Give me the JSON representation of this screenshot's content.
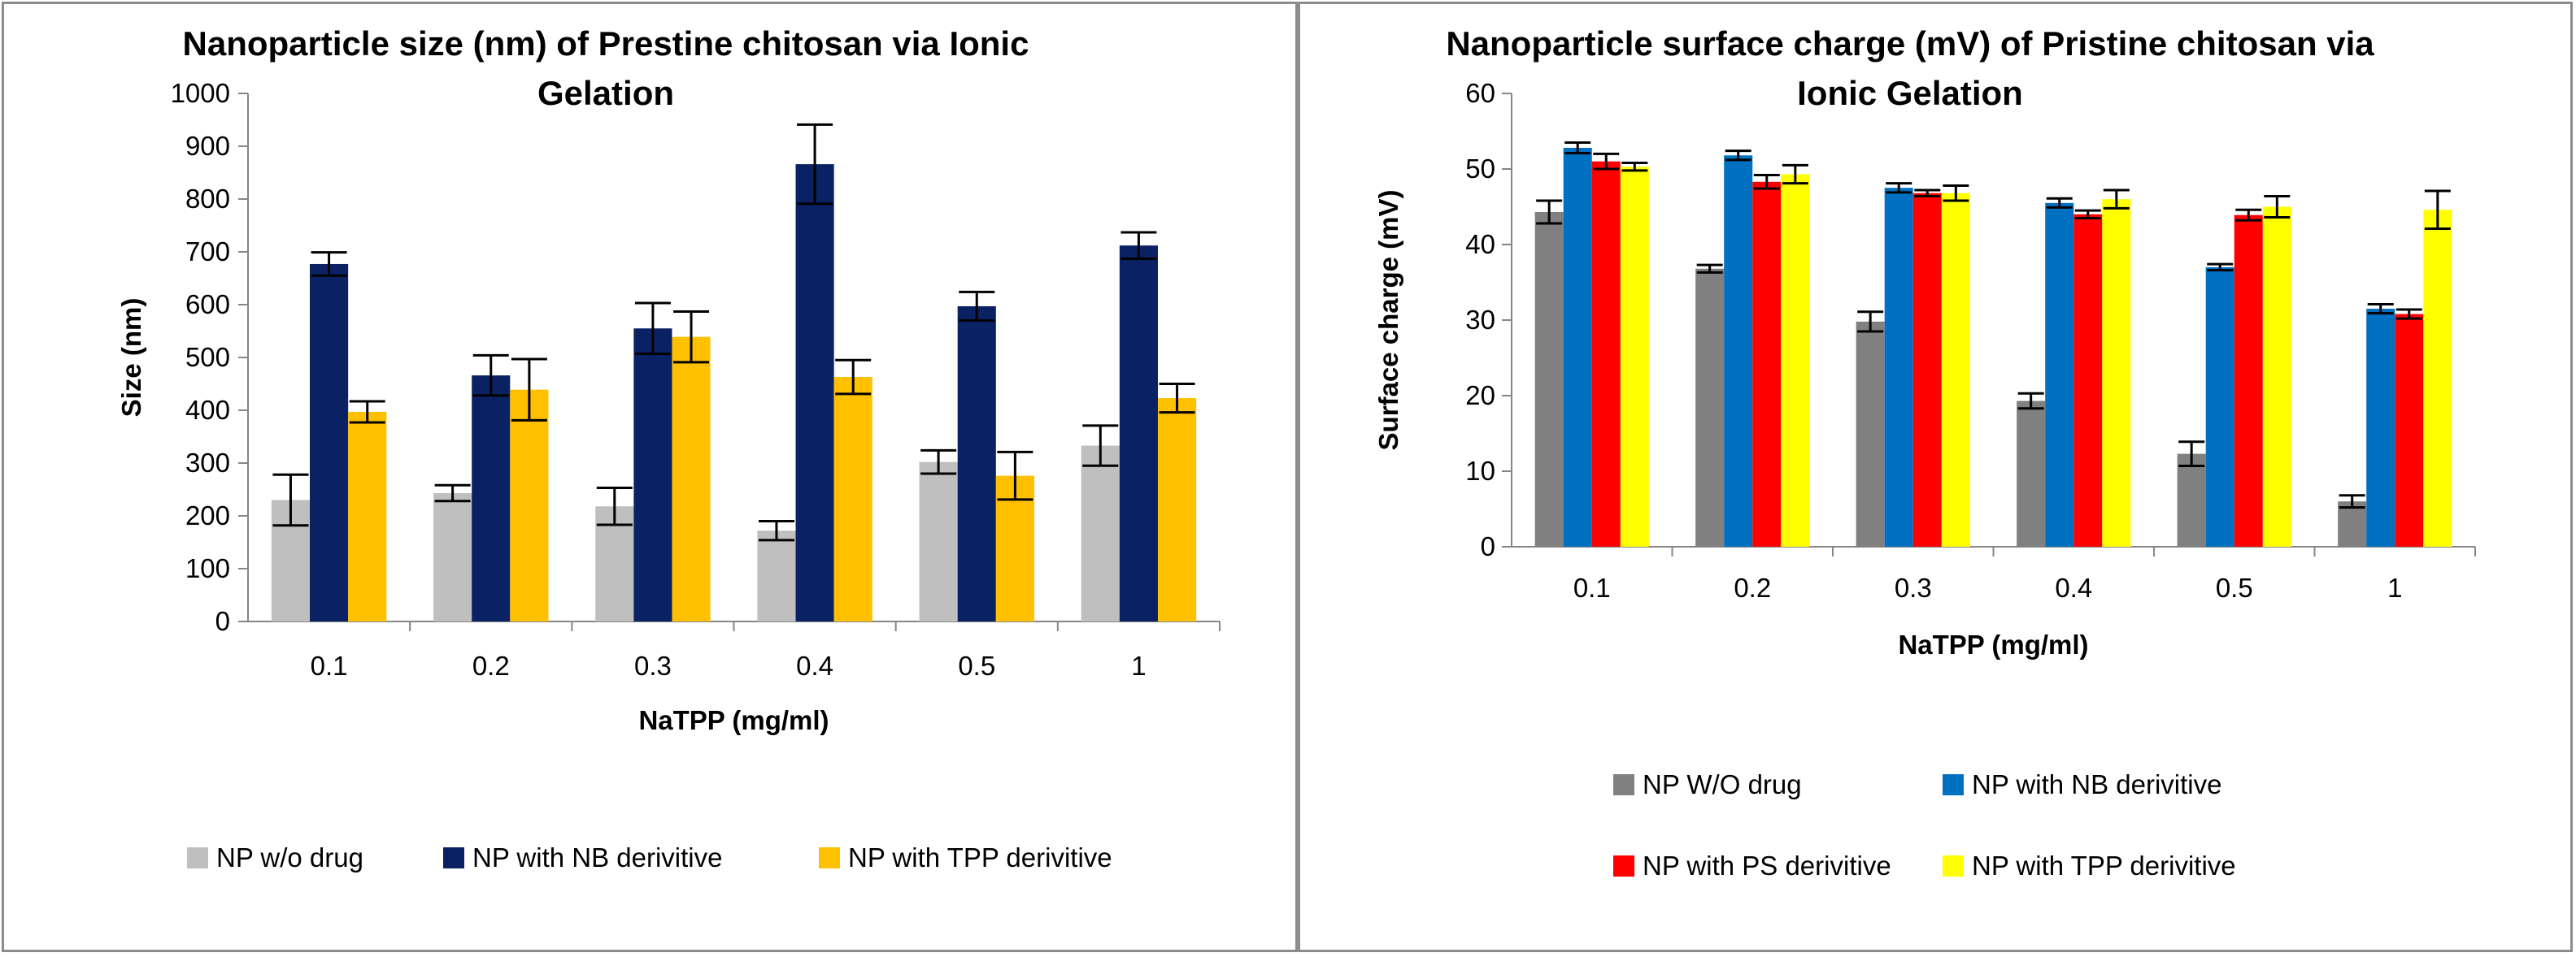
{
  "chart_data": [
    {
      "type": "bar",
      "title_lines": [
        "Nanoparticle size (nm) of Prestine chitosan via Ionic",
        "Gelation"
      ],
      "xlabel": "NaTPP (mg/ml)",
      "ylabel": "Size (nm)",
      "ylim": [
        0,
        1000
      ],
      "ytick_step": 100,
      "categories": [
        "0.1",
        "0.2",
        "0.3",
        "0.4",
        "0.5",
        "1"
      ],
      "series": [
        {
          "name": "NP w/o drug",
          "color": "#bfbfbf",
          "values": [
            230,
            243,
            218,
            172,
            302,
            333
          ],
          "errors": [
            48,
            15,
            35,
            18,
            22,
            38
          ]
        },
        {
          "name": "NP with NB derivitive",
          "color": "#0a2263",
          "values": [
            677,
            466,
            555,
            866,
            597,
            712
          ],
          "errors": [
            22,
            38,
            48,
            75,
            27,
            25
          ]
        },
        {
          "name": "NP with TPP derivitive",
          "color": "#ffc000",
          "values": [
            397,
            439,
            539,
            463,
            276,
            423
          ],
          "errors": [
            20,
            58,
            48,
            32,
            45,
            27
          ]
        }
      ],
      "legend_position": "bottom"
    },
    {
      "type": "bar",
      "title_lines": [
        "Nanoparticle surface charge (mV) of Pristine chitosan via",
        "Ionic Gelation"
      ],
      "xlabel": "NaTPP (mg/ml)",
      "ylabel": "Surface charge (mV)",
      "ylim": [
        0,
        60
      ],
      "ytick_step": 10,
      "categories": [
        "0.1",
        "0.2",
        "0.3",
        "0.4",
        "0.5",
        "1"
      ],
      "series": [
        {
          "name": "NP W/O drug",
          "color": "#808080",
          "values": [
            44.3,
            36.8,
            29.8,
            19.3,
            12.3,
            6.0
          ],
          "errors": [
            1.5,
            0.5,
            1.3,
            1.0,
            1.6,
            0.8
          ]
        },
        {
          "name": "NP with NB derivitive",
          "color": "#0070c0",
          "values": [
            52.8,
            51.8,
            47.5,
            45.5,
            37.0,
            31.5
          ],
          "errors": [
            0.7,
            0.6,
            0.6,
            0.6,
            0.4,
            0.6
          ]
        },
        {
          "name": "NP with PS derivitive",
          "color": "#ff0000",
          "values": [
            51.0,
            48.3,
            46.8,
            44.0,
            43.9,
            30.8
          ],
          "errors": [
            1.0,
            0.9,
            0.4,
            0.5,
            0.7,
            0.6
          ]
        },
        {
          "name": "NP with TPP derivitive",
          "color": "#ffff00",
          "values": [
            50.3,
            49.3,
            46.8,
            46.0,
            45.0,
            44.6
          ],
          "errors": [
            0.5,
            1.2,
            1.0,
            1.2,
            1.4,
            2.5
          ]
        }
      ],
      "legend_position": "bottom"
    }
  ]
}
